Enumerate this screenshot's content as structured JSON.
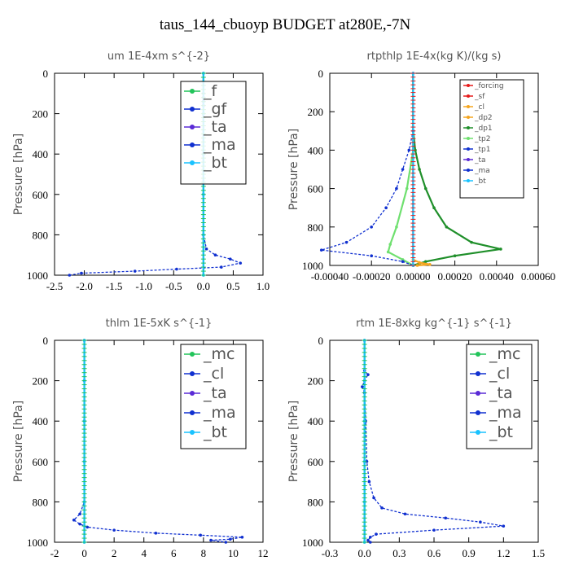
{
  "title": "taus_144_cbuoyp  BUDGET at280E,-7N",
  "colors": {
    "blue_dashed": "#1030d0",
    "cyan": "#19c2ff",
    "green": "#22c45a",
    "red": "#e61b1b",
    "orange": "#f5a51e",
    "dark_green": "#1f8f2a",
    "purple": "#5a2bd6",
    "light_green": "#6fe06f"
  },
  "chart_data": [
    {
      "type": "line",
      "title": "um   1E-4xm s^{-2}",
      "ylabel": "Pressure [hPa]",
      "xlim": [
        -2.5,
        1.0
      ],
      "ylim": [
        1000,
        0
      ],
      "x_ticks": [
        "-2.5",
        "-2.0",
        "-1.5",
        "-1.0",
        "-0.5",
        "0.0",
        "0.5",
        "1.0"
      ],
      "y_ticks": [
        "0",
        "200",
        "400",
        "600",
        "800",
        "1000"
      ],
      "legend": [
        "_f",
        "_gf",
        "_ta",
        "_ma",
        "_bt"
      ],
      "legend_placement": "top-right",
      "series": [
        {
          "name": "_f",
          "color": "#22c45a",
          "style": "solid",
          "points": [
            [
              0,
              0
            ],
            [
              0,
              200
            ],
            [
              0,
              400
            ],
            [
              0,
              600
            ],
            [
              0,
              800
            ],
            [
              0,
              1000
            ]
          ]
        },
        {
          "name": "_gf",
          "color": "#1030d0",
          "style": "dashed",
          "points": [
            [
              0,
              100
            ],
            [
              0,
              120
            ],
            [
              0,
              140
            ],
            [
              0,
              160
            ]
          ]
        },
        {
          "name": "_ma",
          "color": "#1030d0",
          "style": "dashed",
          "points": [
            [
              0,
              0
            ],
            [
              0,
              200
            ],
            [
              0,
              400
            ],
            [
              0,
              600
            ],
            [
              0,
              800
            ],
            [
              0.05,
              870
            ],
            [
              0.2,
              900
            ],
            [
              0.45,
              920
            ],
            [
              0.62,
              940
            ],
            [
              0.3,
              960
            ],
            [
              -0.45,
              970
            ],
            [
              -1.15,
              980
            ],
            [
              -2.05,
              990
            ],
            [
              -2.25,
              1000
            ]
          ]
        },
        {
          "name": "_bt",
          "color": "#19c2ff",
          "style": "solid",
          "points": [
            [
              0,
              0
            ],
            [
              0,
              200
            ],
            [
              0,
              400
            ],
            [
              0,
              600
            ],
            [
              0,
              800
            ],
            [
              0,
              1000
            ]
          ]
        }
      ]
    },
    {
      "type": "line",
      "title": "rtpthlp   1E-4x(kg K)/(kg s)",
      "ylabel": "Pressure [hPa]",
      "xlim": [
        -0.0004,
        0.0006
      ],
      "ylim": [
        1000,
        0
      ],
      "x_ticks": [
        "-0.00040",
        "-0.00020",
        "0.00000",
        "0.00020",
        "0.00040",
        "0.00060"
      ],
      "y_ticks": [
        "0",
        "200",
        "400",
        "600",
        "800",
        "1000"
      ],
      "legend": [
        "_forcing",
        "_sf",
        "_cl",
        "_dp2",
        "_dp1",
        "_tp2",
        "_tp1",
        "_ta",
        "_ma",
        "_bt"
      ],
      "legend_placement": "top-right",
      "series": [
        {
          "name": "_forcing",
          "color": "#e61b1b",
          "style": "solid",
          "points": [
            [
              0,
              0
            ],
            [
              0,
              1000
            ]
          ]
        },
        {
          "name": "_dp1",
          "color": "#1f8f2a",
          "style": "solid",
          "points": [
            [
              0,
              0
            ],
            [
              0,
              300
            ],
            [
              1e-05,
              400
            ],
            [
              3e-05,
              500
            ],
            [
              6e-05,
              600
            ],
            [
              0.0001,
              700
            ],
            [
              0.00016,
              800
            ],
            [
              0.00028,
              880
            ],
            [
              0.00042,
              915
            ],
            [
              0.0002,
              950
            ],
            [
              6e-05,
              980
            ],
            [
              0,
              1000
            ]
          ]
        },
        {
          "name": "_tp2",
          "color": "#6fe06f",
          "style": "solid",
          "points": [
            [
              0,
              0
            ],
            [
              0,
              400
            ],
            [
              -3e-05,
              600
            ],
            [
              -8e-05,
              800
            ],
            [
              -0.00011,
              890
            ],
            [
              -0.00012,
              930
            ],
            [
              -5e-05,
              970
            ],
            [
              0,
              1000
            ]
          ]
        },
        {
          "name": "_tp1",
          "color": "#1030d0",
          "style": "dashed",
          "points": [
            [
              0,
              0
            ],
            [
              0,
              300
            ],
            [
              -2e-05,
              400
            ],
            [
              -5e-05,
              500
            ],
            [
              -8e-05,
              600
            ],
            [
              -0.00013,
              700
            ],
            [
              -0.0002,
              800
            ],
            [
              -0.00032,
              880
            ],
            [
              -0.00044,
              920
            ],
            [
              -0.0002,
              950
            ],
            [
              -5e-05,
              980
            ],
            [
              0,
              1000
            ]
          ]
        },
        {
          "name": "_cl",
          "color": "#f5a51e",
          "style": "solid",
          "points": [
            [
              0,
              970
            ],
            [
              3e-05,
              985
            ],
            [
              8e-05,
              995
            ],
            [
              2e-05,
              1000
            ]
          ]
        },
        {
          "name": "_bt",
          "color": "#19c2ff",
          "style": "solid",
          "points": [
            [
              0,
              0
            ],
            [
              0,
              1000
            ]
          ]
        }
      ]
    },
    {
      "type": "line",
      "title": "thlm   1E-5xK s^{-1}",
      "ylabel": "Pressure [hPa]",
      "xlim": [
        -2,
        12
      ],
      "ylim": [
        1000,
        0
      ],
      "x_ticks": [
        "-2",
        "0",
        "2",
        "4",
        "6",
        "8",
        "10",
        "12"
      ],
      "y_ticks": [
        "0",
        "200",
        "400",
        "600",
        "800",
        "1000"
      ],
      "legend": [
        "_mc",
        "_cl",
        "_ta",
        "_ma",
        "_bt"
      ],
      "legend_placement": "top-right",
      "series": [
        {
          "name": "_mc",
          "color": "#22c45a",
          "style": "solid",
          "points": [
            [
              0,
              0
            ],
            [
              0,
              200
            ],
            [
              0,
              400
            ],
            [
              0,
              600
            ],
            [
              0,
              800
            ],
            [
              0,
              1000
            ]
          ]
        },
        {
          "name": "_cl",
          "color": "#1030d0",
          "style": "dashed",
          "points": [
            [
              0,
              0
            ],
            [
              0,
              200
            ],
            [
              0,
              400
            ],
            [
              0,
              600
            ],
            [
              0,
              800
            ],
            [
              -0.3,
              860
            ],
            [
              -0.7,
              890
            ],
            [
              -0.3,
              910
            ],
            [
              0.2,
              925
            ],
            [
              2,
              940
            ],
            [
              4.8,
              955
            ],
            [
              7.8,
              965
            ],
            [
              10.6,
              975
            ],
            [
              9.8,
              985
            ],
            [
              8.5,
              990
            ],
            [
              9.5,
              1000
            ]
          ]
        },
        {
          "name": "_bt",
          "color": "#19c2ff",
          "style": "solid",
          "points": [
            [
              0,
              0
            ],
            [
              0,
              200
            ],
            [
              0,
              400
            ],
            [
              0,
              600
            ],
            [
              0,
              800
            ],
            [
              0,
              1000
            ]
          ]
        }
      ]
    },
    {
      "type": "line",
      "title": "rtm   1E-8xkg kg^{-1} s^{-1}",
      "ylabel": "Pressure [hPa]",
      "xlim": [
        -0.3,
        1.5
      ],
      "ylim": [
        1000,
        0
      ],
      "x_ticks": [
        "-0.3",
        "0.0",
        "0.3",
        "0.6",
        "0.9",
        "1.2",
        "1.5"
      ],
      "y_ticks": [
        "0",
        "200",
        "400",
        "600",
        "800",
        "1000"
      ],
      "legend": [
        "_mc",
        "_cl",
        "_ta",
        "_ma",
        "_bt"
      ],
      "legend_placement": "top-right",
      "series": [
        {
          "name": "_mc",
          "color": "#22c45a",
          "style": "solid",
          "points": [
            [
              0,
              0
            ],
            [
              0,
              200
            ],
            [
              0,
              400
            ],
            [
              0,
              600
            ],
            [
              0,
              800
            ],
            [
              0,
              1000
            ]
          ]
        },
        {
          "name": "_cl",
          "color": "#1030d0",
          "style": "dashed",
          "points": [
            [
              0,
              0
            ],
            [
              0,
              150
            ],
            [
              0.03,
              170
            ],
            [
              0,
              200
            ],
            [
              -0.02,
              230
            ],
            [
              0,
              260
            ],
            [
              0.01,
              400
            ],
            [
              0.02,
              600
            ],
            [
              0.04,
              700
            ],
            [
              0.08,
              780
            ],
            [
              0.15,
              830
            ],
            [
              0.35,
              860
            ],
            [
              0.7,
              880
            ],
            [
              1.0,
              900
            ],
            [
              1.2,
              920
            ],
            [
              0.6,
              940
            ],
            [
              0.1,
              960
            ],
            [
              0.05,
              975
            ],
            [
              0.03,
              990
            ],
            [
              0.05,
              1000
            ]
          ]
        },
        {
          "name": "_bt",
          "color": "#19c2ff",
          "style": "solid",
          "points": [
            [
              0,
              0
            ],
            [
              0,
              200
            ],
            [
              0,
              400
            ],
            [
              0,
              600
            ],
            [
              0,
              800
            ],
            [
              0,
              1000
            ]
          ]
        }
      ]
    }
  ]
}
